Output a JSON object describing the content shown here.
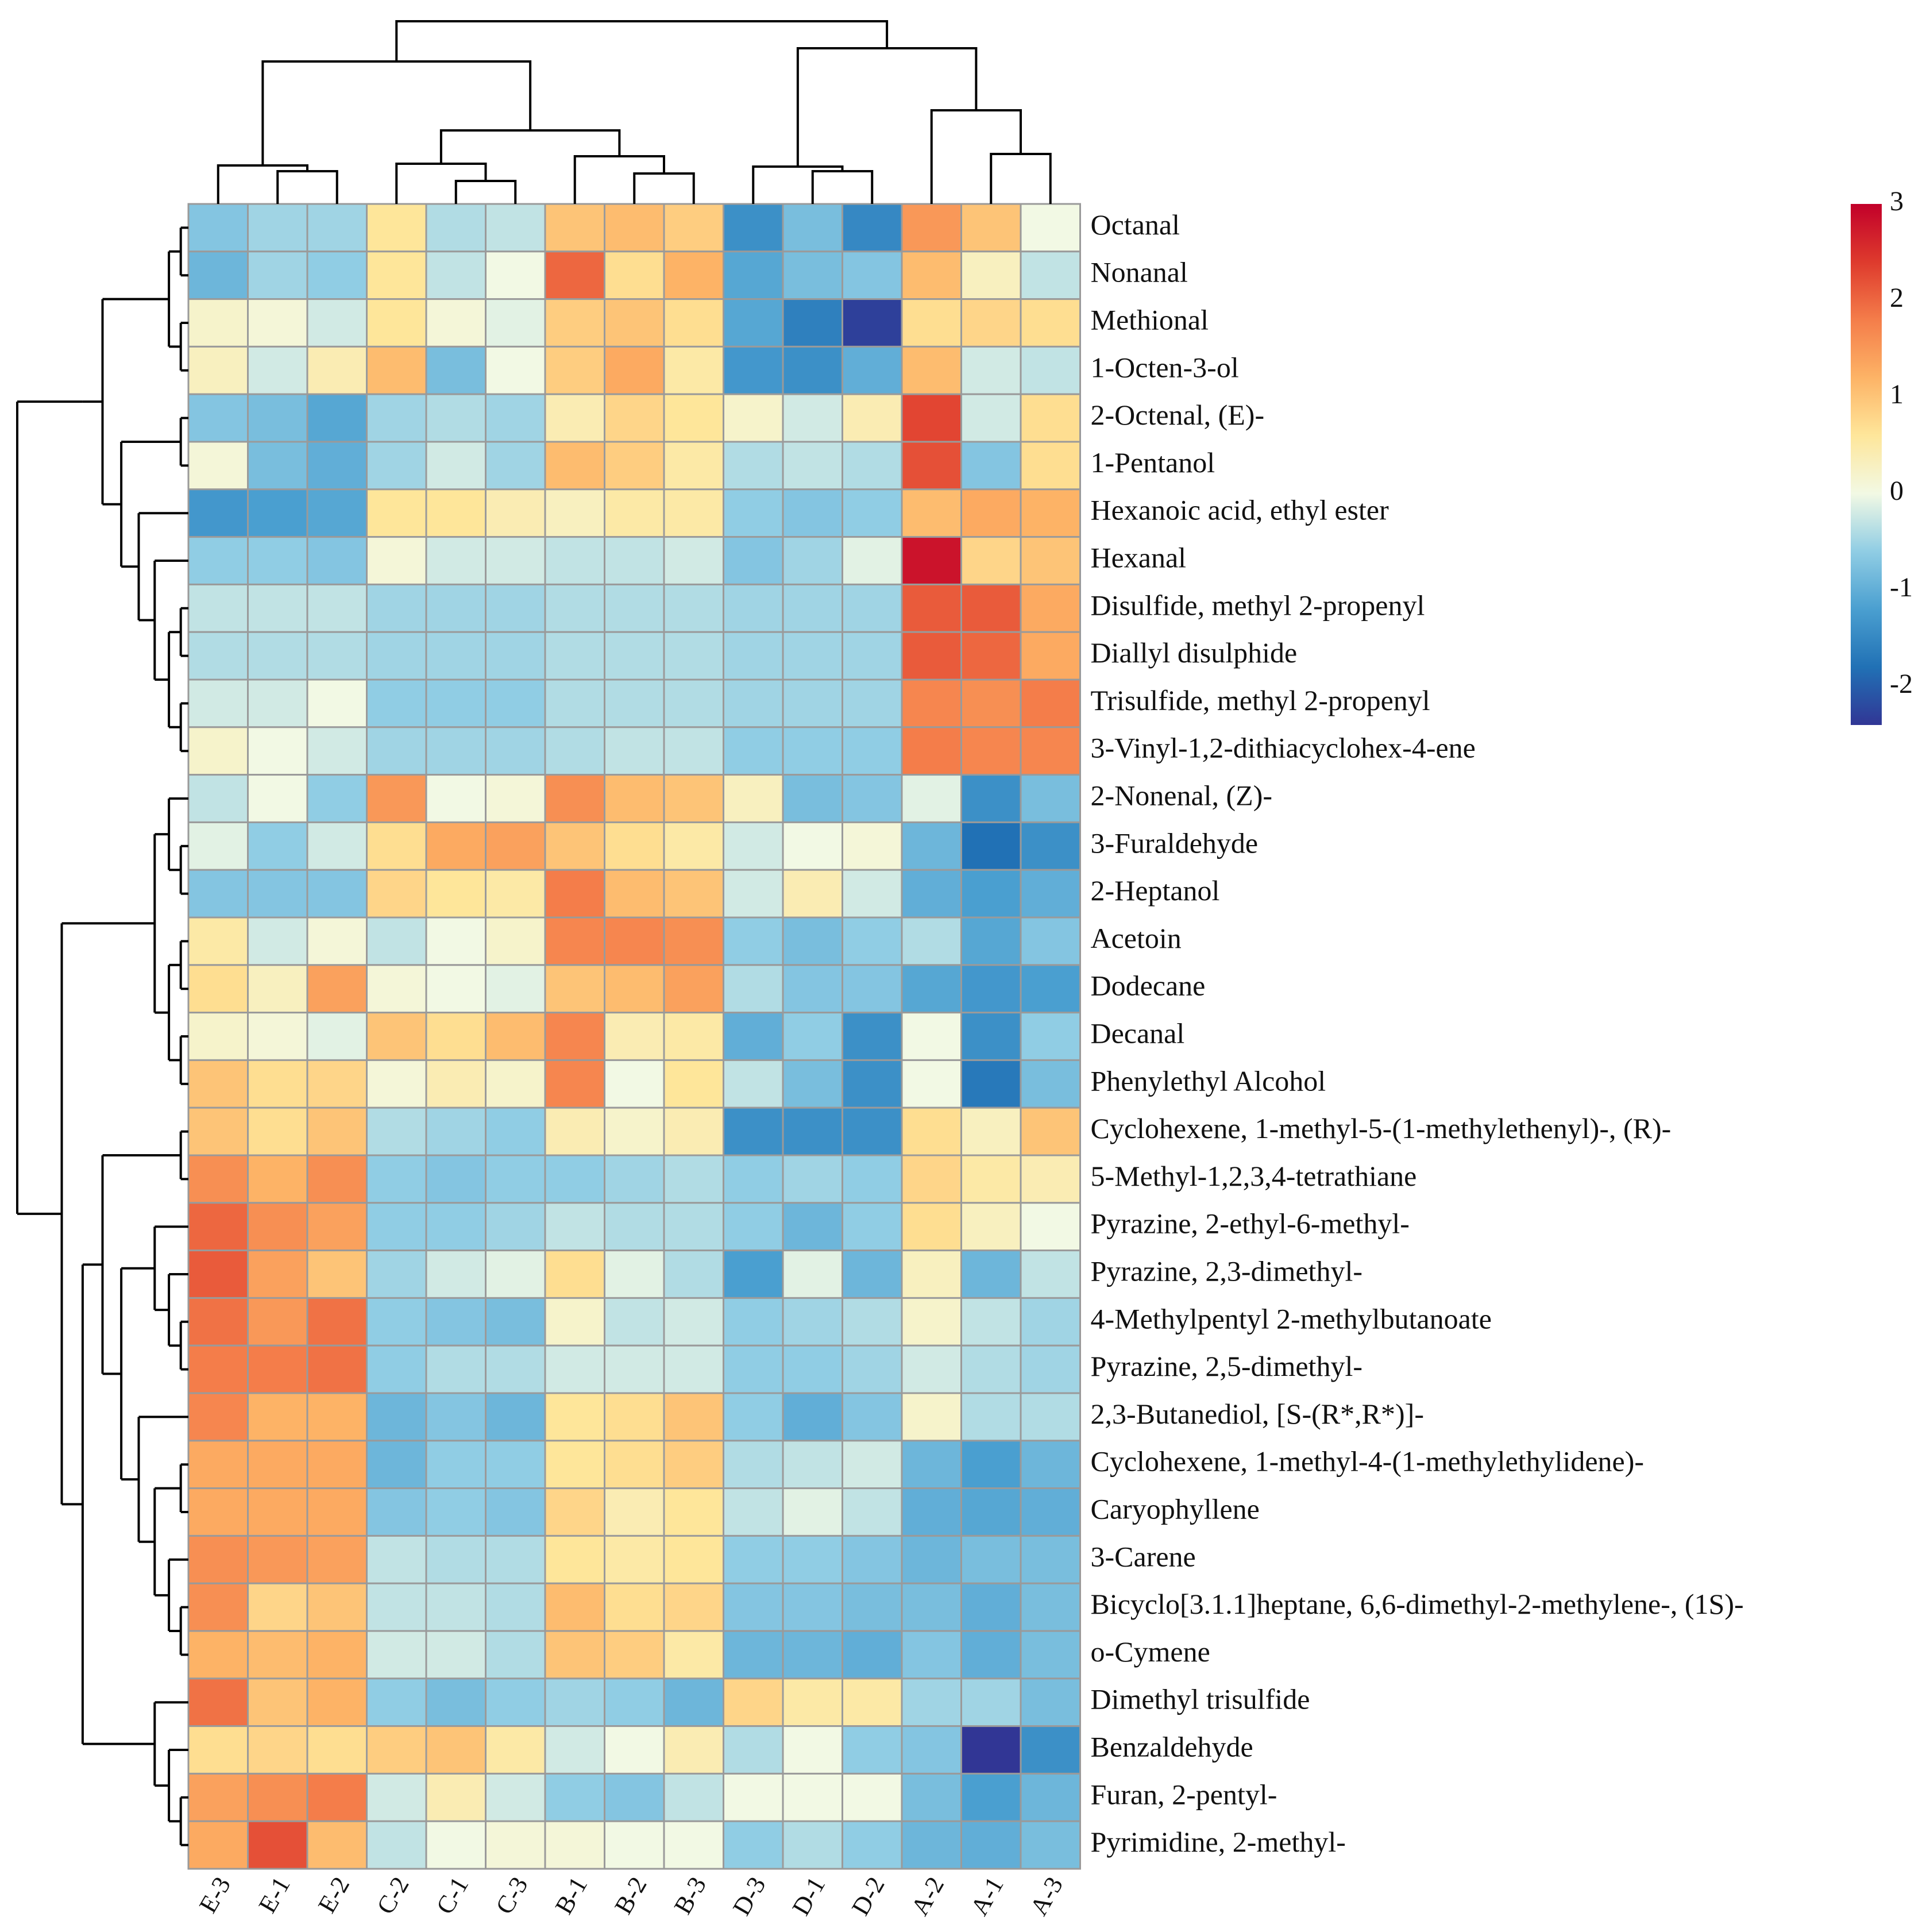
{
  "chart_data": {
    "type": "heatmap",
    "title": "",
    "xlabel": "",
    "ylabel": "",
    "columns": [
      "E-3",
      "E-1",
      "E-2",
      "C-2",
      "C-1",
      "C-3",
      "B-1",
      "B-2",
      "B-3",
      "D-3",
      "D-1",
      "D-2",
      "A-2",
      "A-1",
      "A-3"
    ],
    "rows": [
      "Octanal",
      "Nonanal",
      "Methional",
      "1-Octen-3-ol",
      "2-Octenal, (E)-",
      "1-Pentanol",
      "Hexanoic acid, ethyl ester",
      "Hexanal",
      "Disulfide, methyl 2-propenyl",
      "Diallyl disulphide",
      "Trisulfide, methyl 2-propenyl",
      "3-Vinyl-1,2-dithiacyclohex-4-ene",
      "2-Nonenal, (Z)-",
      "3-Furaldehyde",
      "2-Heptanol",
      "Acetoin",
      "Dodecane",
      "Decanal",
      "Phenylethyl Alcohol",
      "Cyclohexene, 1-methyl-5-(1-methylethenyl)-, (R)-",
      "5-Methyl-1,2,3,4-tetrathiane",
      "Pyrazine, 2-ethyl-6-methyl-",
      "Pyrazine, 2,3-dimethyl-",
      "4-Methylpentyl 2-methylbutanoate",
      "Pyrazine, 2,5-dimethyl-",
      "2,3-Butanediol, [S-(R*,R*)]-",
      "Cyclohexene, 1-methyl-4-(1-methylethylidene)-",
      "Caryophyllene",
      "3-Carene",
      "Bicyclo[3.1.1]heptane, 6,6-dimethyl-2-methylene-, (1S)-",
      "o-Cymene",
      "Dimethyl trisulfide",
      "Benzaldehyde",
      "Furan, 2-pentyl-",
      "Pyrimidine, 2-methyl-"
    ],
    "values": [
      [
        -0.7,
        -0.5,
        -0.5,
        0.6,
        -0.4,
        -0.3,
        1.0,
        1.1,
        0.9,
        -1.4,
        -0.8,
        -1.5,
        1.5,
        1.0,
        0.0
      ],
      [
        -0.9,
        -0.5,
        -0.6,
        0.6,
        -0.3,
        0.0,
        2.0,
        0.7,
        1.2,
        -1.1,
        -0.8,
        -0.7,
        1.1,
        0.3,
        -0.3
      ],
      [
        0.2,
        0.1,
        -0.2,
        0.6,
        0.1,
        -0.1,
        0.9,
        1.0,
        0.7,
        -1.1,
        -1.6,
        -2.3,
        0.7,
        0.8,
        0.7
      ],
      [
        0.3,
        -0.2,
        0.4,
        1.1,
        -0.8,
        0.0,
        0.9,
        1.3,
        0.5,
        -1.3,
        -1.4,
        -1.0,
        1.1,
        -0.2,
        -0.3
      ],
      [
        -0.7,
        -0.8,
        -1.1,
        -0.5,
        -0.4,
        -0.5,
        0.4,
        0.8,
        0.6,
        0.2,
        -0.2,
        0.4,
        2.3,
        -0.2,
        0.7
      ],
      [
        0.1,
        -0.8,
        -1.0,
        -0.5,
        -0.2,
        -0.5,
        1.1,
        0.9,
        0.5,
        -0.4,
        -0.3,
        -0.4,
        2.2,
        -0.7,
        0.7
      ],
      [
        -1.3,
        -1.2,
        -1.1,
        0.6,
        0.6,
        0.4,
        0.3,
        0.5,
        0.5,
        -0.6,
        -0.7,
        -0.6,
        1.1,
        1.3,
        1.2
      ],
      [
        -0.6,
        -0.6,
        -0.7,
        0.1,
        -0.2,
        -0.2,
        -0.3,
        -0.3,
        -0.2,
        -0.7,
        -0.5,
        -0.1,
        2.8,
        0.8,
        1.0
      ],
      [
        -0.3,
        -0.3,
        -0.3,
        -0.5,
        -0.5,
        -0.5,
        -0.4,
        -0.4,
        -0.4,
        -0.5,
        -0.5,
        -0.5,
        2.1,
        2.1,
        1.3
      ],
      [
        -0.4,
        -0.4,
        -0.4,
        -0.5,
        -0.5,
        -0.5,
        -0.4,
        -0.4,
        -0.4,
        -0.5,
        -0.5,
        -0.5,
        2.1,
        2.0,
        1.3
      ],
      [
        -0.2,
        -0.2,
        0.0,
        -0.6,
        -0.6,
        -0.6,
        -0.4,
        -0.4,
        -0.4,
        -0.5,
        -0.5,
        -0.5,
        1.7,
        1.6,
        1.8
      ],
      [
        0.2,
        0.0,
        -0.2,
        -0.5,
        -0.5,
        -0.5,
        -0.4,
        -0.3,
        -0.3,
        -0.6,
        -0.6,
        -0.6,
        1.8,
        1.7,
        1.7
      ],
      [
        -0.3,
        0.0,
        -0.6,
        1.5,
        0.0,
        0.1,
        1.6,
        1.1,
        1.0,
        0.3,
        -0.8,
        -0.7,
        -0.1,
        -1.4,
        -0.8
      ],
      [
        -0.1,
        -0.6,
        -0.2,
        0.7,
        1.3,
        1.4,
        1.0,
        0.7,
        0.5,
        -0.2,
        0.0,
        0.1,
        -0.9,
        -1.8,
        -1.4
      ],
      [
        -0.7,
        -0.7,
        -0.7,
        0.8,
        0.6,
        0.5,
        1.8,
        1.1,
        1.0,
        -0.2,
        0.4,
        -0.2,
        -1.0,
        -1.2,
        -1.0
      ],
      [
        0.5,
        -0.2,
        0.1,
        -0.3,
        0.0,
        0.2,
        1.7,
        1.7,
        1.6,
        -0.6,
        -0.8,
        -0.6,
        -0.4,
        -1.1,
        -0.7
      ],
      [
        0.7,
        0.3,
        1.4,
        0.1,
        0.0,
        -0.1,
        1.0,
        1.1,
        1.4,
        -0.4,
        -0.7,
        -0.7,
        -1.1,
        -1.3,
        -1.2
      ],
      [
        0.2,
        0.1,
        -0.1,
        1.0,
        0.7,
        1.1,
        1.7,
        0.4,
        0.5,
        -1.0,
        -0.6,
        -1.4,
        0.0,
        -1.4,
        -0.6
      ],
      [
        1.0,
        0.7,
        0.8,
        0.1,
        0.4,
        0.2,
        1.7,
        0.0,
        0.6,
        -0.3,
        -0.8,
        -1.4,
        0.0,
        -1.7,
        -0.8
      ],
      [
        1.0,
        0.7,
        1.0,
        -0.4,
        -0.5,
        -0.6,
        0.4,
        0.2,
        0.4,
        -1.4,
        -1.4,
        -1.4,
        0.7,
        0.3,
        1.0
      ],
      [
        1.6,
        1.2,
        1.6,
        -0.6,
        -0.7,
        -0.6,
        -0.6,
        -0.5,
        -0.4,
        -0.6,
        -0.5,
        -0.6,
        0.8,
        0.5,
        0.4
      ],
      [
        2.0,
        1.6,
        1.4,
        -0.6,
        -0.6,
        -0.5,
        -0.3,
        -0.4,
        -0.4,
        -0.6,
        -0.9,
        -0.6,
        0.7,
        0.3,
        0.0
      ],
      [
        2.1,
        1.4,
        1.0,
        -0.5,
        -0.2,
        -0.1,
        0.7,
        -0.1,
        -0.4,
        -1.2,
        -0.1,
        -0.9,
        0.3,
        -0.9,
        -0.3
      ],
      [
        1.9,
        1.5,
        1.9,
        -0.6,
        -0.7,
        -0.8,
        0.2,
        -0.3,
        -0.2,
        -0.6,
        -0.5,
        -0.4,
        0.2,
        -0.3,
        -0.5
      ],
      [
        1.8,
        1.8,
        1.9,
        -0.6,
        -0.4,
        -0.4,
        -0.2,
        -0.2,
        -0.2,
        -0.6,
        -0.6,
        -0.5,
        -0.2,
        -0.4,
        -0.5
      ],
      [
        1.7,
        1.2,
        1.2,
        -0.9,
        -0.7,
        -0.9,
        0.6,
        0.7,
        1.0,
        -0.6,
        -1.0,
        -0.7,
        0.2,
        -0.4,
        -0.4
      ],
      [
        1.3,
        1.3,
        1.3,
        -0.9,
        -0.6,
        -0.6,
        0.6,
        0.7,
        0.9,
        -0.4,
        -0.3,
        -0.2,
        -0.9,
        -1.2,
        -0.9
      ],
      [
        1.3,
        1.3,
        1.3,
        -0.7,
        -0.6,
        -0.7,
        0.8,
        0.4,
        0.6,
        -0.3,
        -0.1,
        -0.3,
        -1.0,
        -1.1,
        -1.0
      ],
      [
        1.6,
        1.5,
        1.4,
        -0.3,
        -0.4,
        -0.4,
        0.6,
        0.5,
        0.6,
        -0.6,
        -0.6,
        -0.7,
        -0.9,
        -0.8,
        -0.8
      ],
      [
        1.6,
        0.8,
        1.0,
        -0.3,
        -0.3,
        -0.4,
        1.1,
        0.7,
        0.8,
        -0.7,
        -0.7,
        -0.8,
        -0.8,
        -1.0,
        -0.8
      ],
      [
        1.2,
        1.1,
        1.2,
        -0.2,
        -0.2,
        -0.4,
        1.0,
        0.9,
        0.5,
        -0.9,
        -0.9,
        -1.0,
        -0.7,
        -1.0,
        -0.8
      ],
      [
        1.9,
        1.0,
        1.2,
        -0.6,
        -0.8,
        -0.6,
        -0.5,
        -0.6,
        -0.9,
        0.8,
        0.5,
        0.5,
        -0.5,
        -0.5,
        -0.8
      ],
      [
        0.7,
        0.8,
        0.7,
        0.9,
        1.0,
        0.5,
        -0.2,
        0.0,
        0.4,
        -0.4,
        0.0,
        -0.6,
        -0.7,
        -2.4,
        -1.4
      ],
      [
        1.4,
        1.6,
        1.8,
        -0.2,
        0.4,
        -0.2,
        -0.6,
        -0.7,
        -0.3,
        0.0,
        0.0,
        0.0,
        -0.8,
        -1.2,
        -0.9
      ],
      [
        1.3,
        2.2,
        1.1,
        -0.3,
        0.0,
        0.1,
        0.1,
        0.0,
        0.0,
        -0.6,
        -0.4,
        -0.6,
        -0.9,
        -1.0,
        -0.8
      ]
    ],
    "color_scale": {
      "min": -2.4,
      "max": 3.0,
      "stops": [
        {
          "v": -2.4,
          "c": "#313695"
        },
        {
          "v": -1.8,
          "c": "#2171b5"
        },
        {
          "v": -1.2,
          "c": "#4a9fd0"
        },
        {
          "v": -0.6,
          "c": "#90cde4"
        },
        {
          "v": 0.0,
          "c": "#f2f9e4"
        },
        {
          "v": 0.6,
          "c": "#fee69a"
        },
        {
          "v": 1.2,
          "c": "#fdb366"
        },
        {
          "v": 1.8,
          "c": "#f47d4a"
        },
        {
          "v": 2.4,
          "c": "#de3a2d"
        },
        {
          "v": 3.0,
          "c": "#c2002a"
        }
      ],
      "ticks": [
        3,
        2,
        1,
        0,
        -1,
        -2
      ]
    },
    "grid": true,
    "legend": "right",
    "column_dendrogram": true,
    "row_dendrogram": true
  }
}
